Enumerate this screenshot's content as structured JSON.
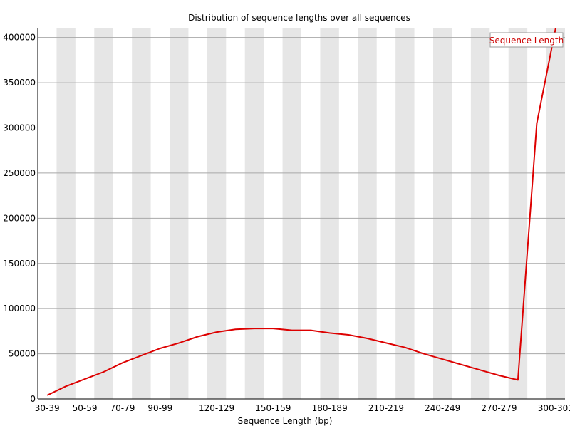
{
  "chart_data": {
    "type": "line",
    "title": "Distribution of sequence lengths over all sequences",
    "xlabel": "Sequence Length (bp)",
    "ylabel": "",
    "ylim": [
      0,
      410000
    ],
    "yticks": [
      0,
      50000,
      100000,
      150000,
      200000,
      250000,
      300000,
      350000,
      400000
    ],
    "x": [
      "30-39",
      "40-49",
      "50-59",
      "60-69",
      "70-79",
      "80-89",
      "90-99",
      "100-109",
      "110-119",
      "120-129",
      "130-139",
      "140-149",
      "150-159",
      "160-169",
      "170-179",
      "180-189",
      "190-199",
      "200-209",
      "210-219",
      "220-229",
      "230-239",
      "240-249",
      "250-259",
      "260-269",
      "270-279",
      "280-289",
      "290-299",
      "300-301"
    ],
    "x_tick_labels_shown": [
      "30-39",
      "50-59",
      "70-79",
      "90-99",
      "120-129",
      "150-159",
      "180-189",
      "210-219",
      "240-249",
      "270-279",
      "300-301"
    ],
    "series": [
      {
        "name": "Sequence Length",
        "color": "#dd0000",
        "values": [
          4000,
          14000,
          22000,
          30000,
          40000,
          48000,
          56000,
          62000,
          69000,
          74000,
          77000,
          78000,
          78000,
          76000,
          76000,
          73000,
          71000,
          67000,
          62000,
          57000,
          50000,
          44000,
          38000,
          32000,
          26000,
          21000,
          305000,
          410000
        ]
      }
    ],
    "grid": true,
    "band_color": "#e6e6e6",
    "legend": "top-right"
  }
}
